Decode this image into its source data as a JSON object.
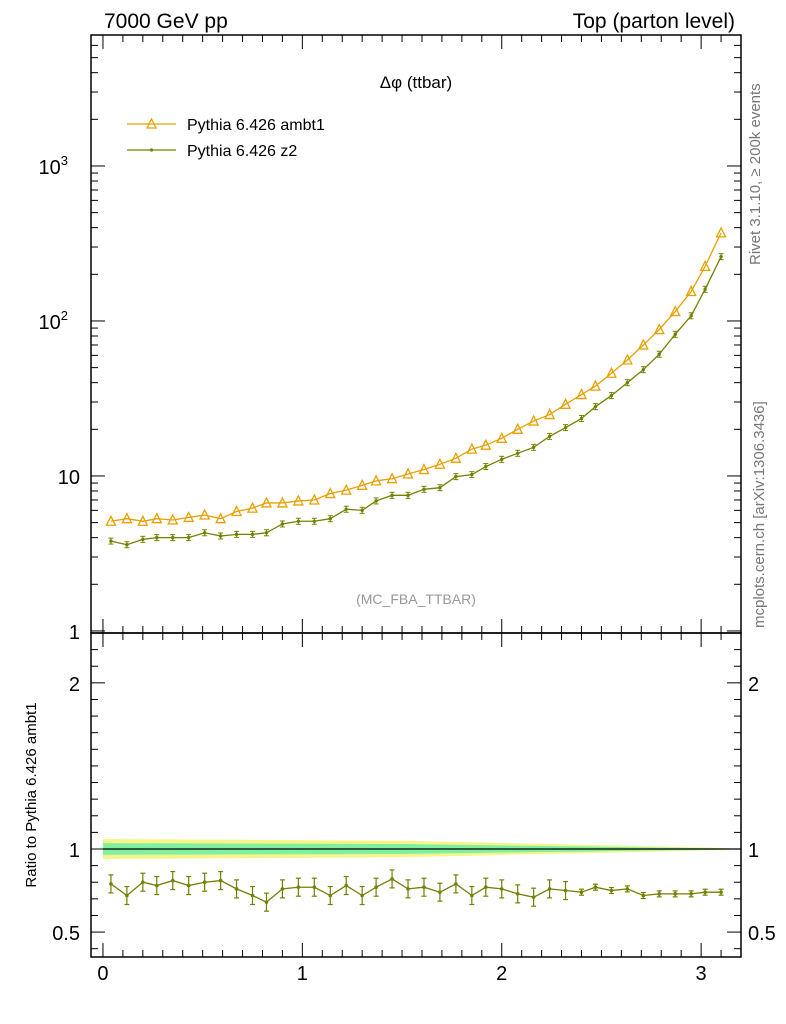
{
  "header": {
    "left": "7000 GeV pp",
    "right": "Top (parton level)"
  },
  "side_labels": {
    "rivet": "Rivet 3.1.10, ≥ 200k events",
    "mcplots": "mcplots.cern.ch [arXiv:1306.3436]"
  },
  "colors": {
    "ambt1": "#e8a000",
    "z2": "#758000",
    "band_outer": "#f6f58a",
    "band_inner": "#80f0a0"
  },
  "chart_data": [
    {
      "type": "line",
      "title": "Δφ (ttbar)",
      "watermark": "(MC_FBA_TTBAR)",
      "ylabel": "",
      "xlabel": "",
      "yscale": "log",
      "xlim": [
        -0.06,
        3.2
      ],
      "ylim": [
        0.97,
        7000
      ],
      "x_ticks": [
        0,
        1,
        2,
        3
      ],
      "y_ticks": [
        {
          "value": 1,
          "label": "1"
        },
        {
          "value": 10,
          "label": "10"
        },
        {
          "value": 100,
          "label": "10",
          "sup": "2"
        },
        {
          "value": 1000,
          "label": "10",
          "sup": "3"
        }
      ],
      "legend_position": "top-left",
      "x": [
        0.04,
        0.12,
        0.2,
        0.27,
        0.35,
        0.43,
        0.51,
        0.59,
        0.67,
        0.75,
        0.82,
        0.9,
        0.98,
        1.06,
        1.14,
        1.22,
        1.3,
        1.37,
        1.45,
        1.53,
        1.61,
        1.69,
        1.77,
        1.85,
        1.92,
        2.0,
        2.08,
        2.16,
        2.24,
        2.32,
        2.4,
        2.47,
        2.55,
        2.63,
        2.71,
        2.79,
        2.87,
        2.95,
        3.02,
        3.1
      ],
      "series": [
        {
          "name": "Pythia 6.426 ambt1",
          "marker": "triangle",
          "values": [
            5.1,
            5.3,
            5.1,
            5.3,
            5.2,
            5.4,
            5.6,
            5.3,
            5.9,
            6.2,
            6.7,
            6.7,
            6.9,
            7.0,
            7.7,
            8.1,
            8.7,
            9.3,
            9.6,
            10.3,
            11.0,
            11.9,
            13.0,
            14.9,
            15.8,
            17.5,
            20.0,
            22.6,
            24.9,
            29.0,
            33.5,
            38.0,
            46.0,
            56.0,
            70.0,
            88.0,
            115.0,
            155.0,
            225.0,
            370.0
          ]
        },
        {
          "name": "Pythia 6.426 z2",
          "marker": "dot",
          "values": [
            3.8,
            3.6,
            3.9,
            4.0,
            4.0,
            4.0,
            4.3,
            4.1,
            4.2,
            4.2,
            4.3,
            4.9,
            5.1,
            5.1,
            5.3,
            6.1,
            6.0,
            6.9,
            7.5,
            7.5,
            8.2,
            8.4,
            9.9,
            10.2,
            11.5,
            12.8,
            14.0,
            15.3,
            18.0,
            20.5,
            23.5,
            28.0,
            33.0,
            40.0,
            48.5,
            61.0,
            82.0,
            108.0,
            160.0,
            260.0
          ]
        }
      ]
    },
    {
      "type": "line",
      "title": "",
      "ylabel": "Ratio to Pythia 6.426 ambt1",
      "xlabel": "",
      "ylim": [
        0.35,
        2.3
      ],
      "x_ticks": [
        0,
        1,
        2,
        3
      ],
      "y_ticks": [
        {
          "value": 0.5,
          "label": "0.5"
        },
        {
          "value": 1,
          "label": "1"
        },
        {
          "value": 2,
          "label": "2"
        }
      ],
      "reference_line": 1,
      "series": [
        {
          "name": "Pythia 6.426 z2",
          "values": [
            0.79,
            0.72,
            0.8,
            0.78,
            0.81,
            0.78,
            0.8,
            0.81,
            0.76,
            0.72,
            0.68,
            0.76,
            0.77,
            0.77,
            0.72,
            0.78,
            0.72,
            0.77,
            0.82,
            0.76,
            0.77,
            0.74,
            0.79,
            0.72,
            0.77,
            0.76,
            0.73,
            0.71,
            0.76,
            0.75,
            0.74,
            0.77,
            0.75,
            0.76,
            0.72,
            0.73,
            0.73,
            0.73,
            0.74,
            0.74
          ]
        }
      ]
    }
  ]
}
